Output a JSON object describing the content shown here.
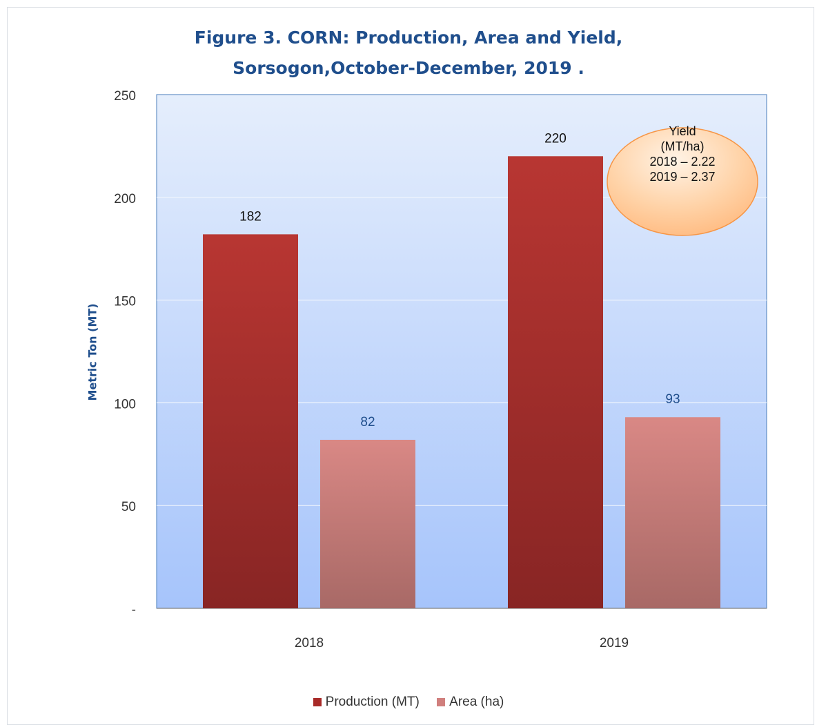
{
  "chart_data": {
    "type": "bar",
    "title_line1": "Figure 3. CORN: Production, Area and Yield,",
    "title_line2": "Sorsogon,October-December, 2019 .",
    "ylabel": "Metric Ton (MT)",
    "xlabel": "",
    "categories": [
      "2018",
      "2019"
    ],
    "series": [
      {
        "name": "Production (MT)",
        "values": [
          182,
          220
        ],
        "color": "#a82a28"
      },
      {
        "name": "Area (ha)",
        "values": [
          82,
          93
        ],
        "color": "#d07f7d"
      }
    ],
    "ylim": [
      0,
      250
    ],
    "yticks": [
      {
        "value": 0,
        "label": "-"
      },
      {
        "value": 50,
        "label": "50"
      },
      {
        "value": 100,
        "label": "100"
      },
      {
        "value": 150,
        "label": "150"
      },
      {
        "value": 200,
        "label": "200"
      },
      {
        "value": 250,
        "label": "250"
      }
    ],
    "grid": true,
    "legend_position": "bottom",
    "annotation": {
      "lines": [
        "Yield",
        "(MT/ha)",
        "2018 – 2.22",
        "2019 – 2.37"
      ]
    }
  }
}
